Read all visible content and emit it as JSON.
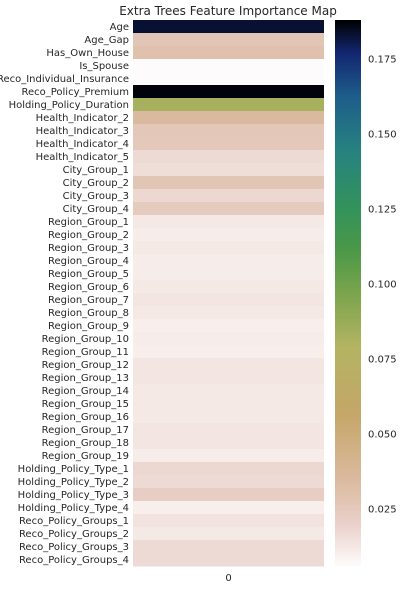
{
  "chart_data": {
    "type": "heatmap",
    "title": "Extra Trees Feature Importance Map",
    "x_categories": [
      "0"
    ],
    "features": [
      "Age",
      "Age_Gap",
      "Has_Own_House",
      "Is_Spouse",
      "Reco_Individual_Insurance",
      "Reco_Policy_Premium",
      "Holding_Policy_Duration",
      "Health_Indicator_2",
      "Health_Indicator_3",
      "Health_Indicator_4",
      "Health_Indicator_5",
      "City_Group_1",
      "City_Group_2",
      "City_Group_3",
      "City_Group_4",
      "Region_Group_1",
      "Region_Group_2",
      "Region_Group_3",
      "Region_Group_4",
      "Region_Group_5",
      "Region_Group_6",
      "Region_Group_7",
      "Region_Group_8",
      "Region_Group_9",
      "Region_Group_10",
      "Region_Group_11",
      "Region_Group_12",
      "Region_Group_13",
      "Region_Group_14",
      "Region_Group_15",
      "Region_Group_16",
      "Region_Group_17",
      "Region_Group_18",
      "Region_Group_19",
      "Holding_Policy_Type_1",
      "Holding_Policy_Type_2",
      "Holding_Policy_Type_3",
      "Holding_Policy_Type_4",
      "Reco_Policy_Groups_1",
      "Reco_Policy_Groups_2",
      "Reco_Policy_Groups_3",
      "Reco_Policy_Groups_4"
    ],
    "values": [
      0.183,
      0.027,
      0.03,
      0.006,
      0.006,
      0.187,
      0.083,
      0.035,
      0.026,
      0.025,
      0.017,
      0.016,
      0.027,
      0.018,
      0.024,
      0.012,
      0.011,
      0.012,
      0.011,
      0.011,
      0.012,
      0.013,
      0.012,
      0.01,
      0.011,
      0.01,
      0.013,
      0.013,
      0.012,
      0.012,
      0.012,
      0.013,
      0.013,
      0.011,
      0.018,
      0.017,
      0.022,
      0.01,
      0.014,
      0.012,
      0.017,
      0.017
    ],
    "colormap": "gist_earth_r",
    "colorbar": {
      "min": 0.006,
      "max": 0.188,
      "ticks": [
        0.025,
        0.05,
        0.075,
        0.1,
        0.125,
        0.15,
        0.175
      ],
      "tick_labels": [
        "0.025",
        "0.050",
        "0.075",
        "0.100",
        "0.125",
        "0.150",
        "0.175"
      ]
    },
    "grid": false
  }
}
